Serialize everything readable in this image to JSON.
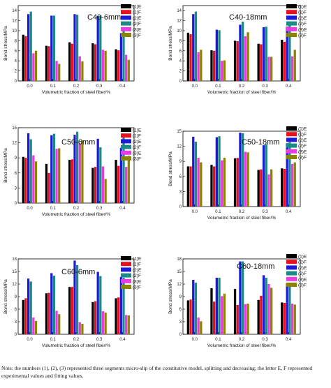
{
  "colors": {
    "(1)E": "#000000",
    "(1)F": "#e8101e",
    "(2)E": "#1a1ad8",
    "(2)F": "#1b8a86",
    "(3)E": "#e83ce0",
    "(3)F": "#8c8400"
  },
  "note": "Note: the numbers (1), (2), (3) represented three segments micro-slip of the constitutive model, splitting and decreasing; the letter E, F represented experimental values and fitting values.",
  "chart_data": [
    {
      "type": "bar",
      "title": "C40-6mm",
      "xlabel": "Volumetric fraction of steel fiber/%",
      "ylabel": "Bond stress/MPa",
      "categories": [
        "0.0",
        "0.1",
        "0.2",
        "0.3",
        "0.4"
      ],
      "ylim": [
        0,
        15
      ],
      "yticks": [
        0,
        2,
        4,
        6,
        8,
        10,
        12,
        14
      ],
      "series": [
        {
          "name": "(1)E",
          "values": [
            9.2,
            7.0,
            7.7,
            7.5,
            6.3
          ]
        },
        {
          "name": "(1)F",
          "values": [
            8.9,
            6.9,
            7.4,
            7.3,
            6.1
          ]
        },
        {
          "name": "(2)E",
          "values": [
            13.3,
            13.0,
            13.3,
            12.9,
            9.5
          ]
        },
        {
          "name": "(2)F",
          "values": [
            13.8,
            13.0,
            13.2,
            13.0,
            10.3
          ]
        },
        {
          "name": "(3)E",
          "values": [
            5.5,
            4.0,
            4.9,
            6.2,
            5.2
          ]
        },
        {
          "name": "(3)F",
          "values": [
            6.0,
            3.4,
            3.9,
            6.0,
            4.2
          ]
        }
      ]
    },
    {
      "type": "bar",
      "title": "C40-18mm",
      "xlabel": "Volumetric fraction of steel fiber/%",
      "ylabel": "Bond stress/MPa",
      "categories": [
        "0.0",
        "0.1",
        "0.2",
        "0.3",
        "0.4"
      ],
      "ylim": [
        0,
        15
      ],
      "yticks": [
        0,
        2,
        4,
        6,
        8,
        10,
        12,
        14
      ],
      "series": [
        {
          "name": "(1)E",
          "values": [
            9.6,
            6.1,
            8.0,
            7.4,
            8.2
          ]
        },
        {
          "name": "(1)F",
          "values": [
            9.3,
            6.0,
            7.9,
            7.3,
            7.8
          ]
        },
        {
          "name": "(2)E",
          "values": [
            13.3,
            10.2,
            11.2,
            10.7,
            10.8
          ]
        },
        {
          "name": "(2)F",
          "values": [
            13.8,
            10.1,
            11.8,
            10.8,
            11.8
          ]
        },
        {
          "name": "(3)E",
          "values": [
            5.7,
            4.0,
            8.9,
            4.8,
            4.9
          ]
        },
        {
          "name": "(3)F",
          "values": [
            6.2,
            4.1,
            9.7,
            4.8,
            6.2
          ]
        }
      ]
    },
    {
      "type": "bar",
      "title": "C50-6mm",
      "xlabel": "Volumetric fraction of steel fiber/%",
      "ylabel": "Bond stress/MPa",
      "categories": [
        "0.0",
        "0.1",
        "0.2",
        "0.3",
        "0.4"
      ],
      "ylim": [
        0,
        15
      ],
      "yticks": [
        0,
        3,
        6,
        9,
        12,
        15
      ],
      "series": [
        {
          "name": "(1)E",
          "values": [
            9.2,
            7.8,
            8.6,
            7.0,
            8.6
          ]
        },
        {
          "name": "(1)F",
          "values": [
            9.0,
            6.0,
            8.7,
            7.2,
            7.4
          ]
        },
        {
          "name": "(2)E",
          "values": [
            13.9,
            13.5,
            13.6,
            12.8,
            11.0
          ]
        },
        {
          "name": "(2)F",
          "values": [
            12.7,
            13.8,
            14.2,
            11.1,
            13.1
          ]
        },
        {
          "name": "(3)E",
          "values": [
            9.5,
            10.8,
            11.9,
            7.3,
            7.2
          ]
        },
        {
          "name": "(3)F",
          "values": [
            8.3,
            10.9,
            12.5,
            4.8,
            9.4
          ]
        }
      ]
    },
    {
      "type": "bar",
      "title": "C50-18mm",
      "xlabel": "Volumetric fraction of steel fiber/%",
      "ylabel": "Bond stress/MPa",
      "categories": [
        "0.0",
        "0.1",
        "0.2",
        "0.3",
        "0.4"
      ],
      "ylim": [
        0,
        15
      ],
      "yticks": [
        0,
        3,
        6,
        9,
        12,
        15
      ],
      "series": [
        {
          "name": "(1)E",
          "values": [
            8.0,
            8.3,
            9.6,
            7.3,
            7.6
          ]
        },
        {
          "name": "(1)F",
          "values": [
            8.0,
            8.0,
            9.7,
            7.4,
            7.5
          ]
        },
        {
          "name": "(2)E",
          "values": [
            13.9,
            13.8,
            14.7,
            12.2,
            12.6
          ]
        },
        {
          "name": "(2)F",
          "values": [
            12.9,
            14.0,
            14.6,
            12.4,
            12.8
          ]
        },
        {
          "name": "(3)E",
          "values": [
            9.7,
            9.2,
            10.9,
            6.4,
            8.5
          ]
        },
        {
          "name": "(3)F",
          "values": [
            8.8,
            9.7,
            10.8,
            7.4,
            8.8
          ]
        }
      ]
    },
    {
      "type": "bar",
      "title": "C60-6mm",
      "xlabel": "Volumetric fraction of steel fiber/%",
      "ylabel": "Bond stress/MPa",
      "categories": [
        "0.0",
        "0.1",
        "0.2",
        "0.3",
        "0.4"
      ],
      "ylim": [
        0,
        18
      ],
      "yticks": [
        0,
        3,
        6,
        9,
        12,
        15,
        18
      ],
      "series": [
        {
          "name": "(1)E",
          "values": [
            8.2,
            9.8,
            11.3,
            7.7,
            8.6
          ]
        },
        {
          "name": "(1)F",
          "values": [
            8.6,
            9.9,
            11.3,
            7.9,
            8.8
          ]
        },
        {
          "name": "(2)E",
          "values": [
            13.3,
            14.6,
            17.6,
            14.9,
            13.7
          ]
        },
        {
          "name": "(2)F",
          "values": [
            12.6,
            14.0,
            16.5,
            13.9,
            13.5
          ]
        },
        {
          "name": "(3)E",
          "values": [
            4.0,
            5.6,
            2.9,
            5.5,
            4.6
          ]
        },
        {
          "name": "(3)F",
          "values": [
            3.2,
            4.8,
            2.5,
            5.2,
            4.5
          ]
        }
      ]
    },
    {
      "type": "bar",
      "title": "C60-18mm",
      "xlabel": "Volumetric fraction of steel fiber/%",
      "ylabel": "Bond stress/MPa",
      "categories": [
        "0.0",
        "0.1",
        "0.2",
        "0.3",
        "0.4"
      ],
      "ylim": [
        0,
        18
      ],
      "yticks": [
        0,
        3,
        6,
        9,
        12,
        15,
        18
      ],
      "series": [
        {
          "name": "(1)E",
          "values": [
            8.1,
            11.0,
            10.8,
            8.2,
            7.6
          ]
        },
        {
          "name": "(1)F",
          "values": [
            8.3,
            7.8,
            7.0,
            9.2,
            7.5
          ]
        },
        {
          "name": "(2)E",
          "values": [
            13.0,
            13.5,
            17.4,
            14.1,
            12.2
          ]
        },
        {
          "name": "(2)F",
          "values": [
            12.3,
            13.5,
            17.4,
            13.5,
            11.7
          ]
        },
        {
          "name": "(3)E",
          "values": [
            4.0,
            9.1,
            7.2,
            12.0,
            7.3
          ]
        },
        {
          "name": "(3)F",
          "values": [
            3.1,
            9.7,
            7.3,
            11.1,
            7.1
          ]
        }
      ]
    }
  ]
}
